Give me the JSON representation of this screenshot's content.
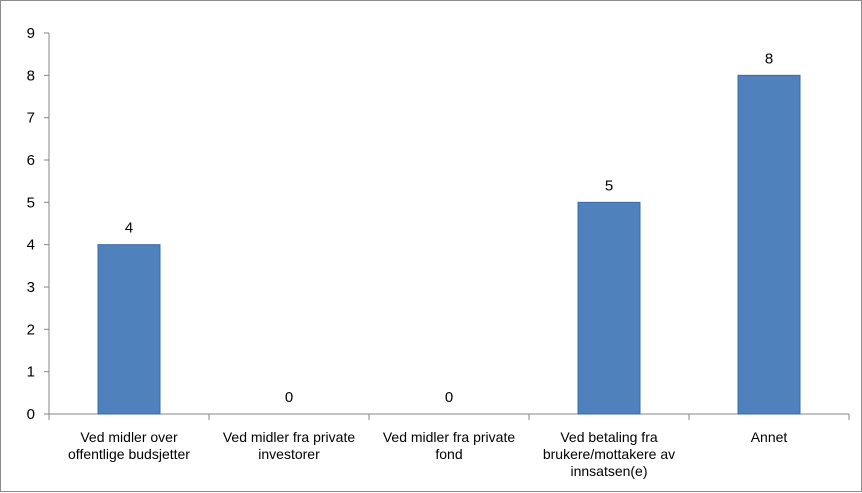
{
  "chart_data": {
    "type": "bar",
    "categories": [
      [
        "Ved midler over",
        "offentlige budsjetter"
      ],
      [
        "Ved midler fra private",
        "investorer"
      ],
      [
        "Ved midler fra private",
        "fond"
      ],
      [
        "Ved betaling fra",
        "brukere/mottakere av",
        "innsatsen(e)"
      ],
      [
        "Annet"
      ]
    ],
    "values": [
      4,
      0,
      0,
      5,
      8
    ],
    "ylim": [
      0,
      9
    ],
    "yticks": [
      0,
      1,
      2,
      3,
      4,
      5,
      6,
      7,
      8,
      9
    ],
    "grid": false,
    "legend": "none",
    "data_labels": true,
    "colors": {
      "bar": "#4f81bd",
      "bar_edge": "#3a6aa5",
      "axis": "#868686"
    }
  }
}
